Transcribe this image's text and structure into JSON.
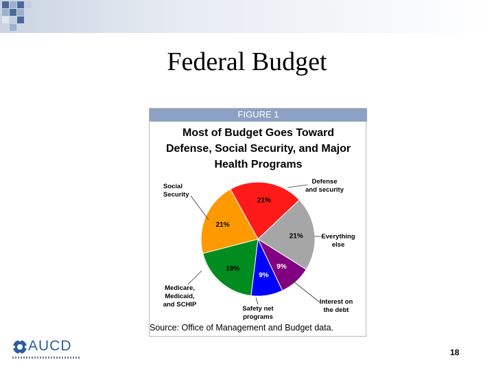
{
  "slide": {
    "title": "Federal Budget",
    "page_number": "18"
  },
  "logo": {
    "text": "AUCD"
  },
  "figure": {
    "label": "FIGURE 1",
    "title_lines": [
      "Most of Budget Goes Toward",
      "Defense, Social Security, and Major",
      "Health Programs"
    ],
    "source": "Source: Office of Management and Budget data."
  },
  "chart_data": {
    "type": "pie",
    "title": "Most of Budget Goes Toward Defense, Social Security, and Major Health Programs",
    "slices": [
      {
        "name": "Defense and security",
        "label_lines": [
          "Defense",
          "and security"
        ],
        "value": 21,
        "display": "21%",
        "color": "#ff1a1a"
      },
      {
        "name": "Everything else",
        "label_lines": [
          "Everything",
          "else"
        ],
        "value": 21,
        "display": "21%",
        "color": "#a6a6a6"
      },
      {
        "name": "Interest on the debt",
        "label_lines": [
          "Interest on",
          "the debt"
        ],
        "value": 9,
        "display": "9%",
        "color": "#800080"
      },
      {
        "name": "Safety net programs",
        "label_lines": [
          "Safety net",
          "programs"
        ],
        "value": 9,
        "display": "9%",
        "color": "#0000ff"
      },
      {
        "name": "Medicare, Medicaid, and SCHIP",
        "label_lines": [
          "Medicare,",
          "Medicaid,",
          "and SCHIP"
        ],
        "value": 19,
        "display": "19%",
        "color": "#008c1e"
      },
      {
        "name": "Social Security",
        "label_lines": [
          "Social",
          "Security"
        ],
        "value": 21,
        "display": "21%",
        "color": "#ff9900"
      }
    ]
  }
}
